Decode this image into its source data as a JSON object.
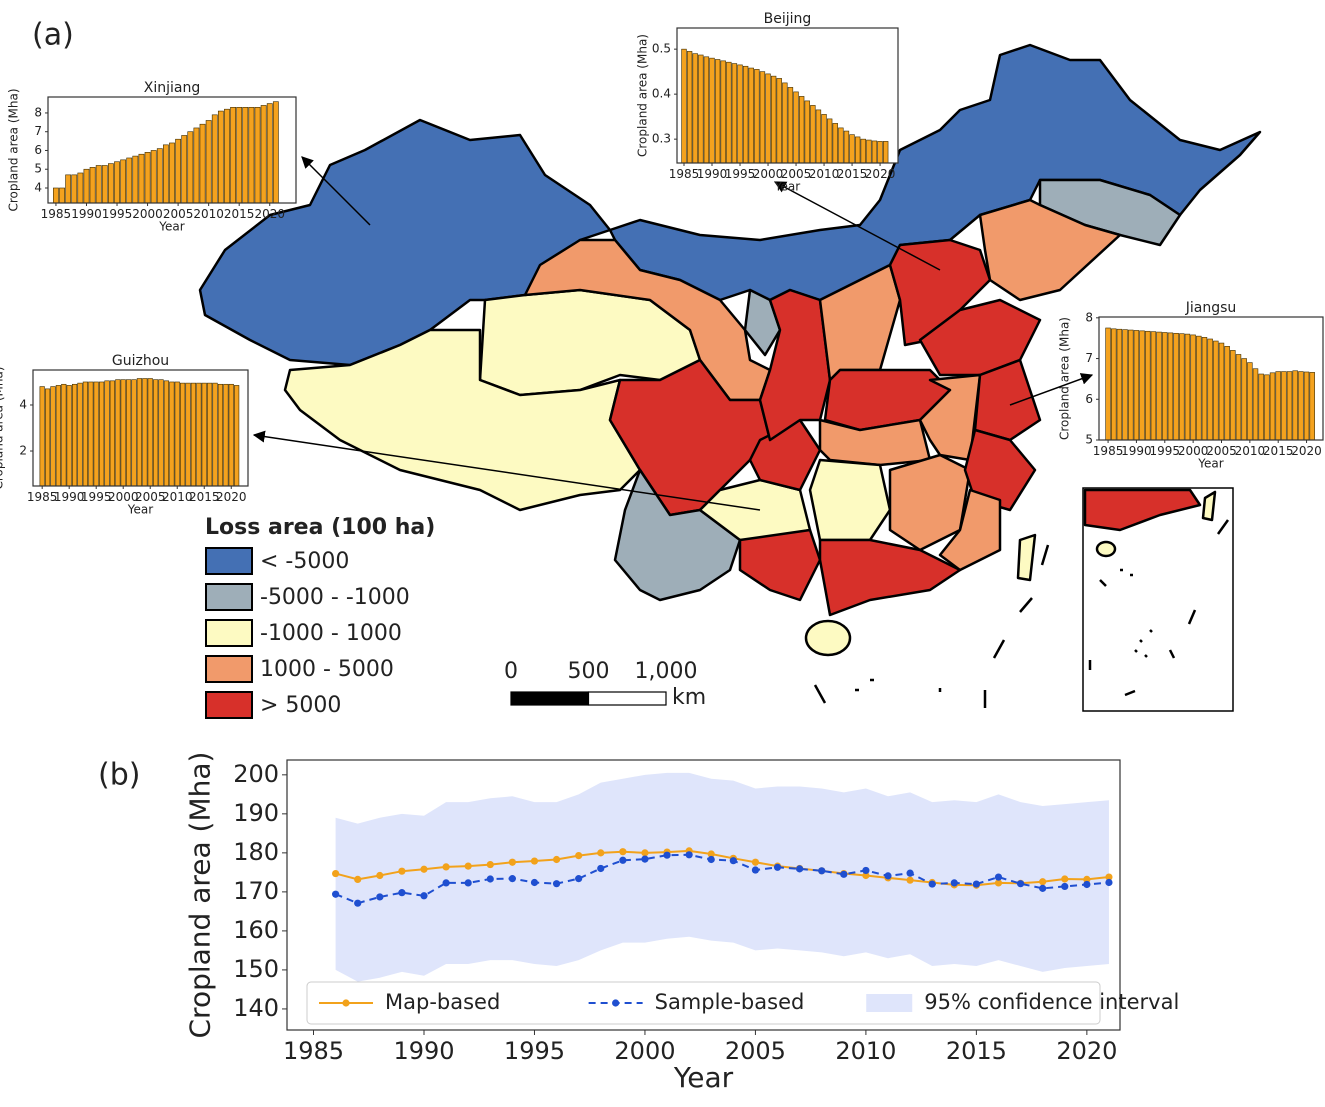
{
  "figure": {
    "panel_a": "(a)",
    "panel_b": "(b)"
  },
  "map": {
    "legend": {
      "title": "Loss area (100 ha)",
      "items": [
        {
          "label": "< -5000",
          "color": "#4470b4"
        },
        {
          "label": "-5000 - -1000",
          "color": "#9eaeb8"
        },
        {
          "label": "-1000 - 1000",
          "color": "#fdfac2"
        },
        {
          "label": "1000 - 5000",
          "color": "#f19a6b"
        },
        {
          "label": "> 5000",
          "color": "#d7302a"
        }
      ]
    },
    "scale_bar": {
      "ticks": [
        0,
        500,
        {
          "value": 1000,
          "label": "1,000"
        }
      ],
      "unit": "km"
    }
  },
  "chart_data": [
    {
      "type": "bar",
      "title": "Xinjiang",
      "ylabel": "Cropland area (Mha)",
      "xlabel": "Year",
      "color": "#f4a21e",
      "x": [
        1985,
        1986,
        1987,
        1988,
        1989,
        1990,
        1991,
        1992,
        1993,
        1994,
        1995,
        1996,
        1997,
        1998,
        1999,
        2000,
        2001,
        2002,
        2003,
        2004,
        2005,
        2006,
        2007,
        2008,
        2009,
        2010,
        2011,
        2012,
        2013,
        2014,
        2015,
        2016,
        2017,
        2018,
        2019,
        2020,
        2021
      ],
      "values": [
        4.0,
        4.0,
        4.7,
        4.7,
        4.8,
        5.0,
        5.1,
        5.2,
        5.2,
        5.3,
        5.4,
        5.5,
        5.6,
        5.7,
        5.8,
        5.9,
        6.0,
        6.1,
        6.3,
        6.4,
        6.6,
        6.8,
        7.0,
        7.2,
        7.4,
        7.6,
        7.9,
        8.1,
        8.2,
        8.3,
        8.3,
        8.3,
        8.3,
        8.3,
        8.4,
        8.5,
        8.6
      ],
      "xlim": [
        1983.7,
        2024.3
      ],
      "ylim": [
        3.2,
        8.85
      ],
      "xticks": [
        1985,
        1990,
        1995,
        2000,
        2005,
        2010,
        2015,
        2020
      ],
      "yticks": [
        4,
        5,
        6,
        7,
        8
      ]
    },
    {
      "type": "bar",
      "title": "Beijing",
      "ylabel": "Cropland area (Mha)",
      "xlabel": "Year",
      "color": "#f4a21e",
      "x": [
        1985,
        1986,
        1987,
        1988,
        1989,
        1990,
        1991,
        1992,
        1993,
        1994,
        1995,
        1996,
        1997,
        1998,
        1999,
        2000,
        2001,
        2002,
        2003,
        2004,
        2005,
        2006,
        2007,
        2008,
        2009,
        2010,
        2011,
        2012,
        2013,
        2014,
        2015,
        2016,
        2017,
        2018,
        2019,
        2020,
        2021
      ],
      "values": [
        0.5,
        0.495,
        0.49,
        0.487,
        0.483,
        0.48,
        0.477,
        0.474,
        0.471,
        0.468,
        0.465,
        0.462,
        0.458,
        0.455,
        0.45,
        0.445,
        0.44,
        0.435,
        0.425,
        0.415,
        0.405,
        0.395,
        0.385,
        0.375,
        0.365,
        0.355,
        0.345,
        0.335,
        0.325,
        0.318,
        0.31,
        0.305,
        0.3,
        0.298,
        0.296,
        0.295,
        0.295
      ],
      "xlim": [
        1983.75,
        2023.2
      ],
      "ylim": [
        0.247,
        0.547
      ],
      "xticks": [
        1985,
        1990,
        1995,
        2000,
        2005,
        2010,
        2015,
        2020
      ],
      "yticks": [
        0.3,
        0.4,
        0.5
      ]
    },
    {
      "type": "bar",
      "title": "Jiangsu",
      "ylabel": "Cropland area (Mha)",
      "xlabel": "Year",
      "color": "#f4a21e",
      "x": [
        1985,
        1986,
        1987,
        1988,
        1989,
        1990,
        1991,
        1992,
        1993,
        1994,
        1995,
        1996,
        1997,
        1998,
        1999,
        2000,
        2001,
        2002,
        2003,
        2004,
        2005,
        2006,
        2007,
        2008,
        2009,
        2010,
        2011,
        2012,
        2013,
        2014,
        2015,
        2016,
        2017,
        2018,
        2019,
        2020,
        2021
      ],
      "values": [
        7.75,
        7.73,
        7.72,
        7.71,
        7.7,
        7.69,
        7.68,
        7.67,
        7.66,
        7.65,
        7.64,
        7.63,
        7.62,
        7.61,
        7.6,
        7.58,
        7.55,
        7.52,
        7.48,
        7.43,
        7.38,
        7.3,
        7.2,
        7.1,
        7.0,
        6.9,
        6.75,
        6.62,
        6.6,
        6.65,
        6.68,
        6.68,
        6.68,
        6.7,
        6.68,
        6.67,
        6.66
      ],
      "xlim": [
        1983.4,
        2022.9
      ],
      "ylim": [
        5,
        8.02
      ],
      "xticks": [
        1985,
        1990,
        1995,
        2000,
        2005,
        2010,
        2015,
        2020
      ],
      "yticks": [
        5,
        6,
        7,
        8
      ]
    },
    {
      "type": "bar",
      "title": "Guizhou",
      "ylabel": "Cropland area (Mha)",
      "xlabel": "Year",
      "color": "#f4a21e",
      "x": [
        1985,
        1986,
        1987,
        1988,
        1989,
        1990,
        1991,
        1992,
        1993,
        1994,
        1995,
        1996,
        1997,
        1998,
        1999,
        2000,
        2001,
        2002,
        2003,
        2004,
        2005,
        2006,
        2007,
        2008,
        2009,
        2010,
        2011,
        2012,
        2013,
        2014,
        2015,
        2016,
        2017,
        2018,
        2019,
        2020,
        2021
      ],
      "values": [
        4.8,
        4.7,
        4.8,
        4.85,
        4.9,
        4.85,
        4.9,
        4.95,
        5.0,
        5.0,
        5.0,
        5.0,
        5.05,
        5.05,
        5.1,
        5.1,
        5.1,
        5.1,
        5.15,
        5.15,
        5.15,
        5.1,
        5.1,
        5.05,
        5.0,
        5.0,
        4.95,
        4.95,
        4.95,
        4.95,
        4.95,
        4.95,
        4.95,
        4.9,
        4.9,
        4.9,
        4.85
      ],
      "xlim": [
        1983.3,
        2023.1
      ],
      "ylim": [
        0.48,
        5.52
      ],
      "xticks": [
        1985,
        1990,
        1995,
        2000,
        2005,
        2010,
        2015,
        2020
      ],
      "yticks": [
        2,
        4
      ]
    },
    {
      "type": "line",
      "ylabel": "Cropland area (Mha)",
      "xlabel": "Year",
      "legend": "lower center",
      "x": [
        1986,
        1987,
        1988,
        1989,
        1990,
        1991,
        1992,
        1993,
        1994,
        1995,
        1996,
        1997,
        1998,
        1999,
        2000,
        2001,
        2002,
        2003,
        2004,
        2005,
        2006,
        2007,
        2008,
        2009,
        2010,
        2011,
        2012,
        2013,
        2014,
        2015,
        2016,
        2017,
        2018,
        2019,
        2020,
        2021
      ],
      "series": [
        {
          "name": "Map-based",
          "color": "#f2a21b",
          "dashed": false,
          "values": [
            174.7,
            173.2,
            174.2,
            175.3,
            175.8,
            176.4,
            176.6,
            177.0,
            177.6,
            177.9,
            178.3,
            179.3,
            180.0,
            180.3,
            180.0,
            180.2,
            180.5,
            179.7,
            178.6,
            177.6,
            176.6,
            176.0,
            175.4,
            174.7,
            174.2,
            173.6,
            173.0,
            172.4,
            171.8,
            171.7,
            172.3,
            172.2,
            172.6,
            173.3,
            173.2,
            173.8
          ]
        },
        {
          "name": "Sample-based",
          "color": "#1f4fd0",
          "dashed": true,
          "values": [
            169.4,
            167.1,
            168.7,
            169.8,
            169.0,
            172.3,
            172.3,
            173.3,
            173.4,
            172.4,
            172.1,
            173.4,
            176.0,
            178.1,
            178.4,
            179.4,
            179.5,
            178.3,
            178.0,
            175.6,
            176.3,
            175.9,
            175.4,
            174.5,
            175.5,
            174.1,
            174.8,
            172.0,
            172.3,
            172.0,
            173.8,
            172.1,
            170.9,
            171.4,
            171.9,
            172.4
          ]
        },
        {
          "name": "95% confidence interval",
          "color": "#dfe5fb",
          "upper": [
            189,
            187.5,
            189,
            190,
            189.5,
            193,
            193,
            194,
            194.5,
            193,
            193,
            195,
            198,
            199,
            200,
            200.5,
            200.5,
            199,
            198.5,
            196.5,
            197,
            197,
            196.5,
            195.5,
            196.5,
            194.5,
            195.5,
            193,
            193.5,
            193,
            195,
            193,
            192,
            192.5,
            193,
            193.5
          ],
          "lower": [
            150,
            147,
            148,
            149.5,
            148.5,
            151.5,
            151.5,
            152.5,
            152.5,
            151.5,
            151,
            152.5,
            155,
            157,
            157,
            158,
            158.5,
            157.5,
            157,
            155,
            155.5,
            155,
            154.5,
            153.5,
            154.5,
            153,
            154,
            151,
            151.5,
            151,
            152.5,
            151,
            149.5,
            150.5,
            151,
            151.5
          ]
        }
      ],
      "xlim": [
        1983.8,
        2021.5
      ],
      "ylim": [
        134.6,
        203.8
      ],
      "xticks": [
        1985,
        1990,
        1995,
        2000,
        2005,
        2010,
        2015,
        2020
      ],
      "yticks": [
        140,
        150,
        160,
        170,
        180,
        190,
        200
      ]
    }
  ]
}
